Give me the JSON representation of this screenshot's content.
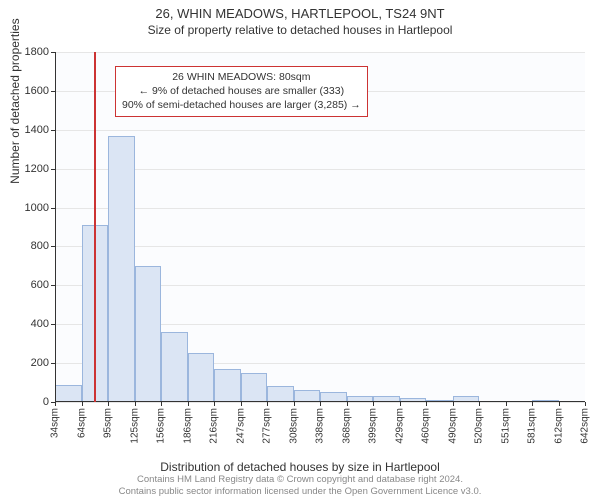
{
  "title": "26, WHIN MEADOWS, HARTLEPOOL, TS24 9NT",
  "subtitle": "Size of property relative to detached houses in Hartlepool",
  "chart": {
    "type": "histogram",
    "background_color": "#fbfcfe",
    "grid_color": "#e6e6e6",
    "axis_color": "#333333",
    "bar_fill": "#dbe5f4",
    "bar_border": "#9bb6dd",
    "y": {
      "min": 0,
      "max": 1800,
      "tick_step": 200,
      "label": "Number of detached properties"
    },
    "x": {
      "label": "Distribution of detached houses by size in Hartlepool",
      "ticks": [
        "34sqm",
        "64sqm",
        "95sqm",
        "125sqm",
        "156sqm",
        "186sqm",
        "216sqm",
        "247sqm",
        "277sqm",
        "308sqm",
        "338sqm",
        "368sqm",
        "399sqm",
        "429sqm",
        "460sqm",
        "490sqm",
        "520sqm",
        "551sqm",
        "581sqm",
        "612sqm",
        "642sqm"
      ]
    },
    "bars": [
      90,
      910,
      1370,
      700,
      360,
      250,
      170,
      150,
      80,
      60,
      50,
      30,
      30,
      20,
      10,
      30,
      0,
      0,
      10,
      0
    ],
    "marker": {
      "color": "#cc3333",
      "bin_index": 1,
      "frac_in_bin": 0.52
    },
    "annotation": {
      "border_color": "#cc3333",
      "lines": [
        "26 WHIN MEADOWS: 80sqm",
        "← 9% of detached houses are smaller (333)",
        "90% of semi-detached houses are larger (3,285) →"
      ]
    }
  },
  "footer": {
    "line1": "Contains HM Land Registry data © Crown copyright and database right 2024.",
    "line2": "Contains public sector information licensed under the Open Government Licence v3.0."
  },
  "fontsizes": {
    "title": 13,
    "subtitle": 12,
    "axis_label": 12,
    "tick": 11,
    "xtick": 10,
    "annotation": 10.5,
    "footer": 9.5
  }
}
